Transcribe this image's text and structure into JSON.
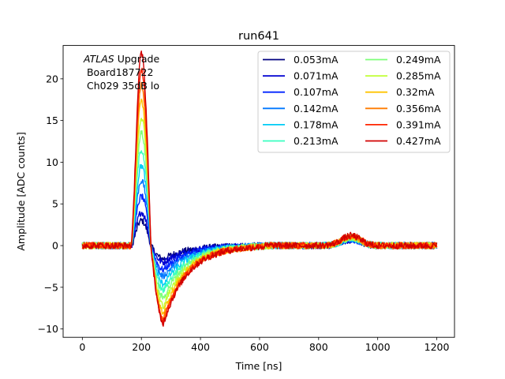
{
  "chart_data": {
    "type": "line",
    "title": "run641",
    "xlabel": "Time [ns]",
    "ylabel": "Amplitude [ADC counts]",
    "xlim": [
      -65,
      1260
    ],
    "ylim": [
      -11,
      24
    ],
    "xticks": [
      0,
      200,
      400,
      600,
      800,
      1000,
      1200
    ],
    "yticks": [
      -10,
      -5,
      0,
      5,
      10,
      15,
      20
    ],
    "grid": false,
    "legend_position": "top-right",
    "legend_columns": 2,
    "annotation": {
      "italic": "ATLAS",
      "line1_rest": " Upgrade",
      "line2": " Board187722",
      "line3": " Ch029 35dB lo"
    },
    "series": [
      {
        "name": "0.053mA",
        "color": "#00007f",
        "peak": 3.0,
        "undershoot": -1.6
      },
      {
        "name": "0.071mA",
        "color": "#0000d1",
        "peak": 4.0,
        "undershoot": -2.0
      },
      {
        "name": "0.107mA",
        "color": "#0024ff",
        "peak": 5.9,
        "undershoot": -2.9
      },
      {
        "name": "0.142mA",
        "color": "#0078ff",
        "peak": 7.8,
        "undershoot": -3.7
      },
      {
        "name": "0.178mA",
        "color": "#00ccf6",
        "peak": 9.6,
        "undershoot": -4.6
      },
      {
        "name": "0.213mA",
        "color": "#38ffc0",
        "peak": 11.5,
        "undershoot": -5.4
      },
      {
        "name": "0.249mA",
        "color": "#7eff79",
        "peak": 13.5,
        "undershoot": -6.3
      },
      {
        "name": "0.285mA",
        "color": "#c0ff36",
        "peak": 15.4,
        "undershoot": -7.2
      },
      {
        "name": "0.32mA",
        "color": "#ffc400",
        "peak": 17.3,
        "undershoot": -8.0
      },
      {
        "name": "0.356mA",
        "color": "#ff7c00",
        "peak": 19.2,
        "undershoot": -8.7
      },
      {
        "name": "0.391mA",
        "color": "#ff2500",
        "peak": 21.1,
        "undershoot": -9.1
      },
      {
        "name": "0.427mA",
        "color": "#d10000",
        "peak": 23.0,
        "undershoot": -9.3
      }
    ],
    "waveform": {
      "t_start": 0,
      "t_end": 1200,
      "step": 2,
      "pulse_start": 165,
      "peak_time": 200,
      "zero_cross": 232,
      "undershoot_time": 275,
      "recovery_end": 620,
      "bump_center": 910,
      "bump_height": 1.2,
      "noise_amplitude": 0.4
    }
  }
}
